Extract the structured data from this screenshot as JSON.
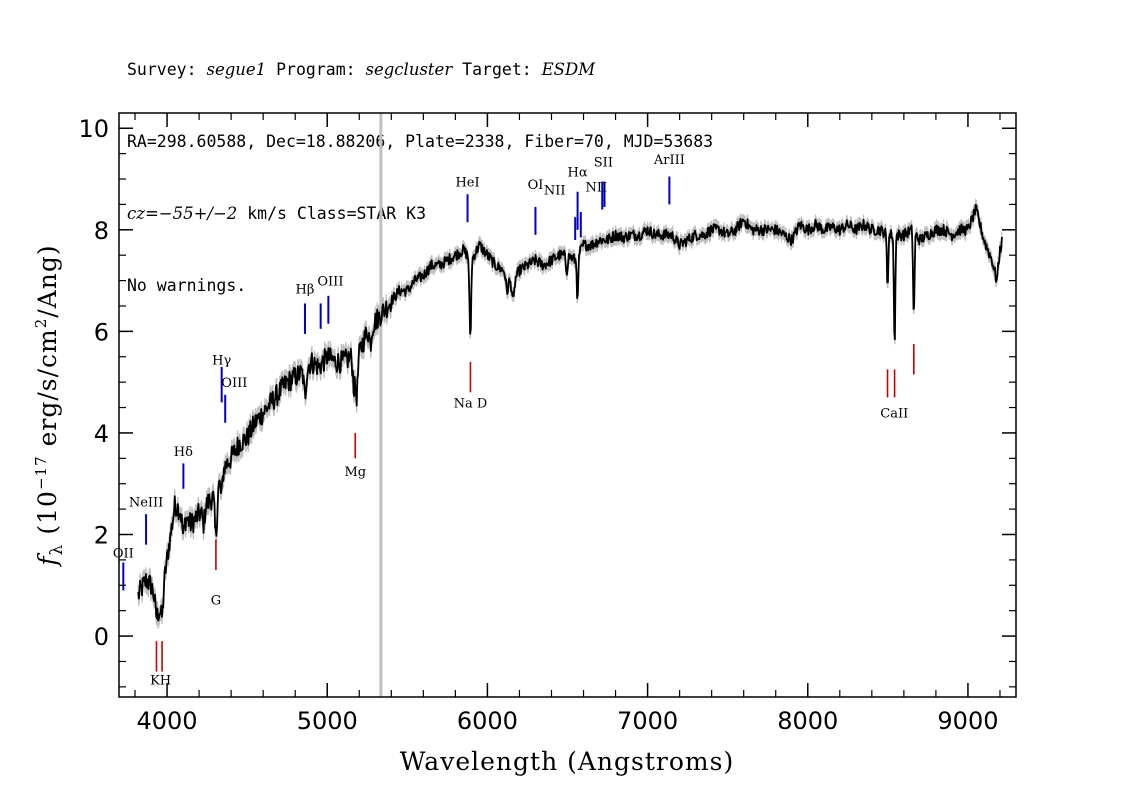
{
  "header": {
    "line1": {
      "survey_label": "Survey: ",
      "survey": "segue1",
      "program_label": " Program: ",
      "program": "segcluster",
      "target_label": " Target: ",
      "target": "ESDM"
    },
    "line2": "RA=298.60588, Dec=18.88206, Plate=2338, Fiber=70, MJD=53683",
    "line3": {
      "cz_label": "cz",
      "cz_value": "=−55+/−2",
      "cz_rest": " km/s Class=STAR K3"
    },
    "line4": "No warnings."
  },
  "chart_data": {
    "type": "line",
    "xlabel": "Wavelength (Angstroms)",
    "ylabel": {
      "symbol": "f",
      "subscript": "λ",
      "text_before_exp": " (10",
      "exponent": "−17",
      "text_after_exp": " erg/s/cm",
      "exp2": "2",
      "text_end": "/Ang)"
    },
    "xlim": [
      3700,
      9300
    ],
    "ylim": [
      -1.2,
      10.3
    ],
    "x_ticks": [
      4000,
      5000,
      6000,
      7000,
      8000,
      9000
    ],
    "y_ticks": [
      0,
      2,
      4,
      6,
      8,
      10
    ],
    "x_tick_labels": [
      "4000",
      "5000",
      "6000",
      "7000",
      "8000",
      "9000"
    ],
    "y_tick_labels": [
      "0",
      "2",
      "4",
      "6",
      "8",
      "10"
    ],
    "vertical_marker_x": 5335,
    "colors": {
      "spectrum": "#000000",
      "error_band": "#c0c0c0",
      "emission": "#0000cc",
      "absorption": "#cc0000",
      "marker": "#c0c0c0"
    },
    "continuum": [
      [
        3820,
        0.8
      ],
      [
        3870,
        1.1
      ],
      [
        3900,
        1.0
      ],
      [
        3950,
        0.55
      ],
      [
        3990,
        1.3
      ],
      [
        4050,
        2.6
      ],
      [
        4100,
        2.4
      ],
      [
        4150,
        2.2
      ],
      [
        4200,
        2.4
      ],
      [
        4250,
        2.6
      ],
      [
        4300,
        2.8
      ],
      [
        4350,
        3.3
      ],
      [
        4400,
        3.5
      ],
      [
        4450,
        3.8
      ],
      [
        4500,
        3.9
      ],
      [
        4550,
        4.2
      ],
      [
        4600,
        4.4
      ],
      [
        4650,
        4.6
      ],
      [
        4700,
        4.8
      ],
      [
        4750,
        5.0
      ],
      [
        4800,
        5.1
      ],
      [
        4850,
        5.2
      ],
      [
        4900,
        5.4
      ],
      [
        4950,
        5.3
      ],
      [
        5000,
        5.5
      ],
      [
        5050,
        5.4
      ],
      [
        5100,
        5.4
      ],
      [
        5150,
        5.5
      ],
      [
        5200,
        5.6
      ],
      [
        5250,
        6.0
      ],
      [
        5300,
        6.2
      ],
      [
        5350,
        6.4
      ],
      [
        5400,
        6.6
      ],
      [
        5450,
        6.8
      ],
      [
        5500,
        6.8
      ],
      [
        5550,
        7.0
      ],
      [
        5600,
        7.1
      ],
      [
        5650,
        7.3
      ],
      [
        5700,
        7.3
      ],
      [
        5750,
        7.4
      ],
      [
        5800,
        7.5
      ],
      [
        5850,
        7.6
      ],
      [
        5900,
        7.4
      ],
      [
        5950,
        7.7
      ],
      [
        6000,
        7.5
      ],
      [
        6050,
        7.3
      ],
      [
        6100,
        7.2
      ],
      [
        6150,
        6.9
      ],
      [
        6200,
        7.2
      ],
      [
        6250,
        7.3
      ],
      [
        6300,
        7.4
      ],
      [
        6350,
        7.3
      ],
      [
        6400,
        7.4
      ],
      [
        6450,
        7.5
      ],
      [
        6500,
        7.5
      ],
      [
        6550,
        7.4
      ],
      [
        6600,
        7.7
      ],
      [
        6650,
        7.7
      ],
      [
        6700,
        7.8
      ],
      [
        6750,
        7.8
      ],
      [
        6800,
        7.9
      ],
      [
        6850,
        7.85
      ],
      [
        6900,
        7.9
      ],
      [
        6950,
        7.9
      ],
      [
        7000,
        8.0
      ],
      [
        7050,
        7.9
      ],
      [
        7100,
        7.9
      ],
      [
        7150,
        7.9
      ],
      [
        7200,
        7.7
      ],
      [
        7250,
        7.8
      ],
      [
        7300,
        7.9
      ],
      [
        7350,
        7.9
      ],
      [
        7400,
        8.0
      ],
      [
        7450,
        8.0
      ],
      [
        7500,
        7.9
      ],
      [
        7550,
        8.0
      ],
      [
        7600,
        8.2
      ],
      [
        7650,
        8.0
      ],
      [
        7700,
        8.0
      ],
      [
        7750,
        8.0
      ],
      [
        7800,
        8.0
      ],
      [
        7850,
        7.9
      ],
      [
        7900,
        7.8
      ],
      [
        7950,
        8.1
      ],
      [
        8000,
        8.0
      ],
      [
        8050,
        8.1
      ],
      [
        8100,
        8.0
      ],
      [
        8150,
        8.05
      ],
      [
        8200,
        8.0
      ],
      [
        8250,
        8.1
      ],
      [
        8300,
        8.0
      ],
      [
        8350,
        8.1
      ],
      [
        8400,
        8.0
      ],
      [
        8450,
        8.0
      ],
      [
        8500,
        7.9
      ],
      [
        8550,
        7.9
      ],
      [
        8600,
        7.9
      ],
      [
        8650,
        8.0
      ],
      [
        8700,
        7.8
      ],
      [
        8750,
        7.9
      ],
      [
        8800,
        8.0
      ],
      [
        8850,
        8.0
      ],
      [
        8900,
        7.9
      ],
      [
        8950,
        8.0
      ],
      [
        9000,
        8.0
      ],
      [
        9050,
        8.4
      ],
      [
        9100,
        7.8
      ],
      [
        9150,
        7.4
      ],
      [
        9180,
        7.0
      ],
      [
        9200,
        7.6
      ],
      [
        9215,
        7.8
      ]
    ],
    "absorption_features": [
      [
        3934,
        0.3,
        12
      ],
      [
        3969,
        0.5,
        12
      ],
      [
        4101,
        0.4,
        10
      ],
      [
        4227,
        0.3,
        10
      ],
      [
        4305,
        0.9,
        10
      ],
      [
        4340,
        0.4,
        10
      ],
      [
        4861,
        0.5,
        10
      ],
      [
        5167,
        0.6,
        10
      ],
      [
        5184,
        0.8,
        10
      ],
      [
        5270,
        0.3,
        10
      ],
      [
        5893,
        1.6,
        7
      ],
      [
        6122,
        0.3,
        8
      ],
      [
        6162,
        0.4,
        8
      ],
      [
        6495,
        0.3,
        8
      ],
      [
        6563,
        0.9,
        6
      ],
      [
        8498,
        1.0,
        6
      ],
      [
        8542,
        2.2,
        6
      ],
      [
        8662,
        1.7,
        6
      ]
    ],
    "emission_lines": [
      {
        "label": "OII",
        "x": 3727
      },
      {
        "label": "NeIII",
        "x": 3869
      },
      {
        "label": "Hδ",
        "x": 4102
      },
      {
        "label": "Hγ",
        "x": 4341
      },
      {
        "label": "OIII",
        "x": 4363
      },
      {
        "label": "Hβ",
        "x": 4861
      },
      {
        "label": "OIII",
        "x": 4959
      },
      {
        "label": "OIII_2",
        "x": 5007
      },
      {
        "label": "HeI",
        "x": 5876
      },
      {
        "label": "OI",
        "x": 6300
      },
      {
        "label": "NII",
        "x": 6548
      },
      {
        "label": "Hα",
        "x": 6563
      },
      {
        "label": "NII",
        "x": 6583
      },
      {
        "label": "SII",
        "x": 6717
      },
      {
        "label": "SII_2",
        "x": 6731
      },
      {
        "label": "ArIII",
        "x": 7136
      }
    ],
    "emission_line_labels": [
      {
        "text": "OII",
        "x": 3727,
        "y": 1.55
      },
      {
        "text": "NeIII",
        "x": 3869,
        "y": 2.55
      },
      {
        "text": "Hδ",
        "x": 4102,
        "y": 3.55
      },
      {
        "text": "Hγ",
        "x": 4341,
        "y": 5.35
      },
      {
        "text": "OIII",
        "x": 4420,
        "y": 4.9
      },
      {
        "text": "Hβ",
        "x": 4861,
        "y": 6.75
      },
      {
        "text": "OIII",
        "x": 5020,
        "y": 6.9
      },
      {
        "text": "HeI",
        "x": 5876,
        "y": 8.85
      },
      {
        "text": "OI",
        "x": 6300,
        "y": 8.8
      },
      {
        "text": "NII",
        "x": 6420,
        "y": 8.7
      },
      {
        "text": "Hα",
        "x": 6563,
        "y": 9.05
      },
      {
        "text": "NII",
        "x": 6680,
        "y": 8.75
      },
      {
        "text": "SII",
        "x": 6724,
        "y": 9.25
      },
      {
        "text": "ArIII",
        "x": 7136,
        "y": 9.3
      }
    ],
    "emission_segments": [
      [
        3727,
        0.9,
        1.45
      ],
      [
        3869,
        1.8,
        2.4
      ],
      [
        4102,
        2.9,
        3.4
      ],
      [
        4341,
        4.6,
        5.3
      ],
      [
        4363,
        4.2,
        4.75
      ],
      [
        4861,
        5.95,
        6.55
      ],
      [
        4959,
        6.05,
        6.55
      ],
      [
        5007,
        6.15,
        6.7
      ],
      [
        5876,
        8.15,
        8.7
      ],
      [
        6300,
        7.9,
        8.45
      ],
      [
        6548,
        7.8,
        8.25
      ],
      [
        6563,
        8.0,
        8.75
      ],
      [
        6583,
        7.85,
        8.35
      ],
      [
        6717,
        8.4,
        8.95
      ],
      [
        6731,
        8.45,
        8.95
      ],
      [
        7136,
        8.5,
        9.05
      ]
    ],
    "absorption_lines": [
      {
        "label": "K",
        "x": 3934
      },
      {
        "label": "H",
        "x": 3969
      },
      {
        "label": "G",
        "x": 4305
      },
      {
        "label": "Mg",
        "x": 5175
      },
      {
        "label": "Na D",
        "x": 5894
      },
      {
        "label": "CaII",
        "x": 8498
      },
      {
        "label": "CaII_2",
        "x": 8542
      },
      {
        "label": "CaII_3",
        "x": 8662
      }
    ],
    "absorption_line_labels": [
      {
        "text": "K",
        "x": 3925,
        "y": -0.95
      },
      {
        "text": "H",
        "x": 3990,
        "y": -0.95
      },
      {
        "text": "G",
        "x": 4305,
        "y": 0.62
      },
      {
        "text": "Mg",
        "x": 5175,
        "y": 3.15
      },
      {
        "text": "Na  D",
        "x": 5894,
        "y": 4.5
      },
      {
        "text": "CaII",
        "x": 8540,
        "y": 4.3
      }
    ],
    "absorption_segments": [
      [
        3934,
        -0.7,
        -0.1
      ],
      [
        3969,
        -0.7,
        -0.1
      ],
      [
        4305,
        1.3,
        1.9
      ],
      [
        5175,
        3.5,
        4.0
      ],
      [
        5894,
        4.8,
        5.4
      ],
      [
        8498,
        4.7,
        5.25
      ],
      [
        8542,
        4.7,
        5.25
      ],
      [
        8662,
        5.15,
        5.75
      ]
    ]
  }
}
